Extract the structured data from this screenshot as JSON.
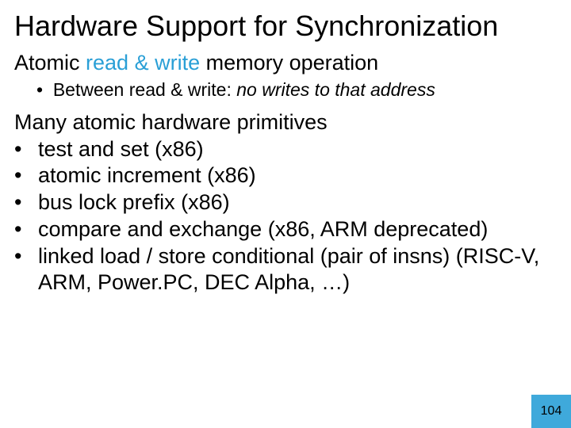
{
  "title": "Hardware Support for Synchronization",
  "section1": {
    "prefix": "Atomic ",
    "accent": "read & write",
    "suffix": " memory operation"
  },
  "sub1": {
    "prefix": "Between read & write: ",
    "italic": "no writes to that address"
  },
  "section2": "Many atomic hardware primitives",
  "bullets": {
    "b0": "test and set (x86)",
    "b1": "atomic increment (x86)",
    "b2": "bus lock prefix (x86)",
    "b3": "compare and exchange (x86, ARM deprecated)",
    "b4": "linked load / store conditional  (pair of insns) (RISC-V, ARM, Power.PC, DEC Alpha, …)"
  },
  "bullet_dot": "•",
  "page_number": "104",
  "colors": {
    "accent": "#2a9fd6",
    "box": "#3fa9db",
    "text": "#000000",
    "bg": "#ffffff"
  },
  "fontsizes": {
    "title": 36,
    "body": 27,
    "sub": 23,
    "pagenum": 16
  }
}
